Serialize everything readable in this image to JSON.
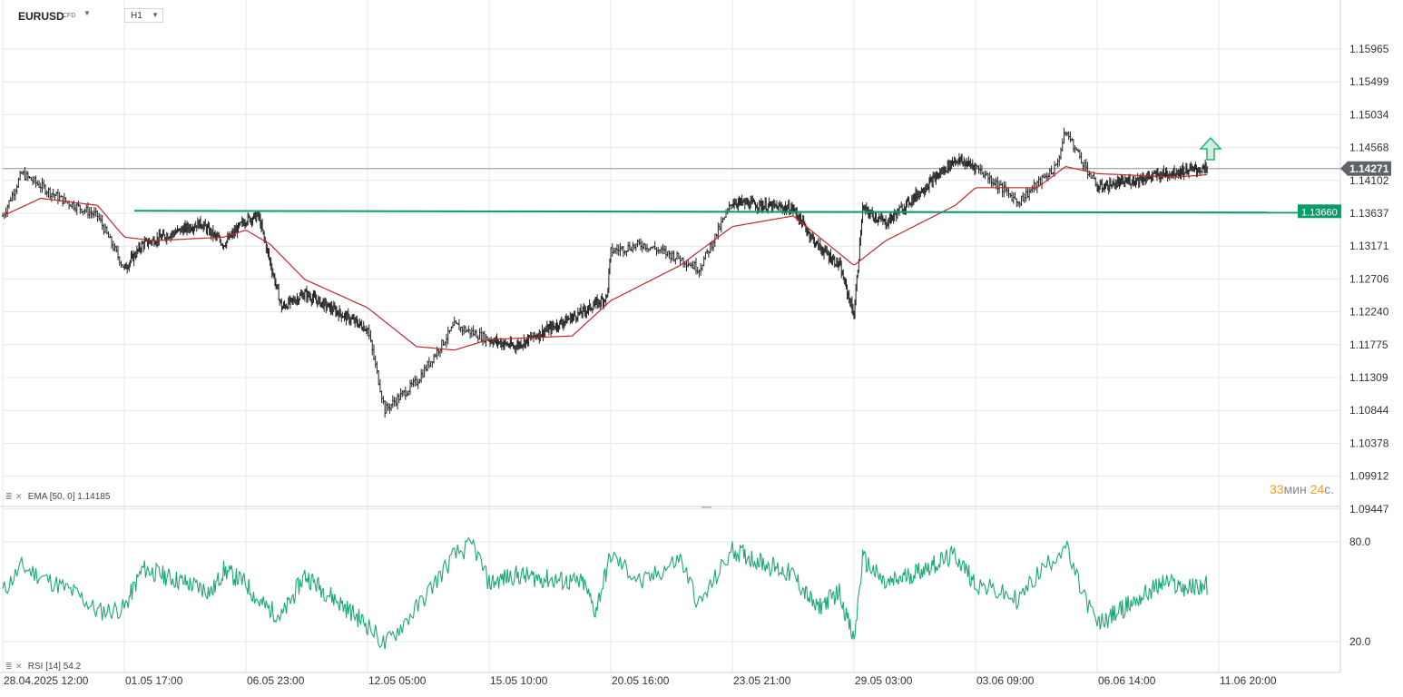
{
  "toolbar": {
    "symbol": "EURUSD",
    "symbol_type": "CFD",
    "timeframe": "H1"
  },
  "price_axis": {
    "ticks": [
      "1.15965",
      "1.15499",
      "1.15034",
      "1.14568",
      "1.14102",
      "1.13637",
      "1.13171",
      "1.12706",
      "1.12240",
      "1.11775",
      "1.11309",
      "1.10844",
      "1.10378",
      "1.09912",
      "1.09447"
    ],
    "current_price": "1.14271",
    "level_label": "1.13660"
  },
  "rsi_axis": {
    "ticks": [
      "80.0",
      "20.0"
    ]
  },
  "time_axis": {
    "labels": [
      "28.04.2025  12:00",
      "01.05  17:00",
      "06.05  23:00",
      "12.05  05:00",
      "15.05  10:00",
      "20.05  16:00",
      "23.05  21:00",
      "29.05  03:00",
      "03.06  09:00",
      "06.06  14:00",
      "11.06  20:00"
    ]
  },
  "indicators": {
    "ema_label": "EMA",
    "ema_params": "[50, 0]",
    "ema_value": "1.14185",
    "rsi_label": "RSI",
    "rsi_params": "[14]",
    "rsi_value": "54.2"
  },
  "countdown": {
    "minutes": "33",
    "min_unit": "мин",
    "seconds": "24",
    "sec_unit": "с."
  },
  "colors": {
    "candle": "#222222",
    "ema": "#c0282d",
    "level": "#0a9b6a",
    "rsi": "#1aaa72",
    "grid": "#e4e7ea",
    "current_price_tag": "#5f6368",
    "arrow": "#26b37d"
  },
  "chart_data": [
    {
      "type": "candlestick",
      "title": "EURUSD H1",
      "x_labels": [
        "28.04.2025 12:00",
        "01.05 17:00",
        "06.05 23:00",
        "12.05 05:00",
        "15.05 10:00",
        "20.05 16:00",
        "23.05 21:00",
        "29.05 03:00",
        "03.06 09:00",
        "06.06 14:00",
        "11.06 20:00"
      ],
      "ylim": [
        1.0922,
        1.162
      ],
      "close_path": [
        [
          "28.04 12:00",
          1.136
        ],
        [
          "29.04 00:00",
          1.142
        ],
        [
          "30.04 00:00",
          1.1385
        ],
        [
          "01.05 00:00",
          1.136
        ],
        [
          "01.05 17:00",
          1.1285
        ],
        [
          "02.05 12:00",
          1.132
        ],
        [
          "05.05 00:00",
          1.135
        ],
        [
          "06.05 00:00",
          1.132
        ],
        [
          "06.05 23:00",
          1.1355
        ],
        [
          "07.05 12:00",
          1.136
        ],
        [
          "08.05 12:00",
          1.123
        ],
        [
          "09.05 12:00",
          1.125
        ],
        [
          "12.05 05:00",
          1.12
        ],
        [
          "12.05 16:00",
          1.1085
        ],
        [
          "13.05 12:00",
          1.1125
        ],
        [
          "14.05 12:00",
          1.1205
        ],
        [
          "15.05 10:00",
          1.1185
        ],
        [
          "16.05 12:00",
          1.1175
        ],
        [
          "19.05 12:00",
          1.1225
        ],
        [
          "20.05 12:00",
          1.1245
        ],
        [
          "20.05 16:00",
          1.131
        ],
        [
          "21.05 12:00",
          1.132
        ],
        [
          "22.05 12:00",
          1.13
        ],
        [
          "23.05 00:00",
          1.1285
        ],
        [
          "23.05 21:00",
          1.138
        ],
        [
          "26.05 12:00",
          1.137
        ],
        [
          "27.05 12:00",
          1.132
        ],
        [
          "28.05 12:00",
          1.129
        ],
        [
          "29.05 03:00",
          1.122
        ],
        [
          "29.05 12:00",
          1.137
        ],
        [
          "30.05 12:00",
          1.135
        ],
        [
          "02.06 12:00",
          1.144
        ],
        [
          "03.06 09:00",
          1.143
        ],
        [
          "04.06 12:00",
          1.138
        ],
        [
          "05.06 12:00",
          1.143
        ],
        [
          "05.06 18:00",
          1.148
        ],
        [
          "06.06 14:00",
          1.14
        ],
        [
          "09.06 12:00",
          1.142
        ],
        [
          "10.06 12:00",
          1.1425
        ],
        [
          "11.06 08:00",
          1.1427
        ]
      ]
    },
    {
      "type": "line",
      "name": "EMA [50, 0]",
      "last_value": 1.14185,
      "points": [
        [
          "28.04 12:00",
          1.136
        ],
        [
          "29.04 12:00",
          1.1385
        ],
        [
          "01.05 00:00",
          1.1375
        ],
        [
          "01.05 17:00",
          1.133
        ],
        [
          "03.05 00:00",
          1.1325
        ],
        [
          "06.05 00:00",
          1.133
        ],
        [
          "06.05 23:00",
          1.134
        ],
        [
          "08.05 00:00",
          1.132
        ],
        [
          "09.05 12:00",
          1.127
        ],
        [
          "12.05 05:00",
          1.123
        ],
        [
          "13.05 12:00",
          1.1175
        ],
        [
          "14.05 12:00",
          1.117
        ],
        [
          "15.05 10:00",
          1.1185
        ],
        [
          "19.05 00:00",
          1.119
        ],
        [
          "20.05 16:00",
          1.124
        ],
        [
          "22.05 12:00",
          1.129
        ],
        [
          "23.05 21:00",
          1.1345
        ],
        [
          "26.05 12:00",
          1.136
        ],
        [
          "28.05 00:00",
          1.132
        ],
        [
          "29.05 03:00",
          1.129
        ],
        [
          "30.05 12:00",
          1.1325
        ],
        [
          "02.06 12:00",
          1.1375
        ],
        [
          "03.06 09:00",
          1.14
        ],
        [
          "05.06 00:00",
          1.14
        ],
        [
          "05.06 18:00",
          1.143
        ],
        [
          "06.06 14:00",
          1.142
        ],
        [
          "10.06 00:00",
          1.1415
        ],
        [
          "11.06 08:00",
          1.14185
        ]
      ]
    },
    {
      "type": "hline",
      "name": "level",
      "value": 1.1366
    },
    {
      "type": "line",
      "name": "RSI [14]",
      "ylim": [
        10,
        90
      ],
      "last_value": 54.2,
      "points": [
        [
          "28.04 12:00",
          50
        ],
        [
          "29.04 00:00",
          65
        ],
        [
          "30.04 12:00",
          48
        ],
        [
          "01.05 00:00",
          38
        ],
        [
          "01.05 17:00",
          40
        ],
        [
          "02.05 12:00",
          64
        ],
        [
          "05.05 12:00",
          50
        ],
        [
          "06.05 00:00",
          63
        ],
        [
          "06.05 23:00",
          55
        ],
        [
          "07.05 12:00",
          44
        ],
        [
          "08.05 12:00",
          35
        ],
        [
          "09.05 12:00",
          60
        ],
        [
          "12.05 05:00",
          30
        ],
        [
          "12.05 16:00",
          18
        ],
        [
          "13.05 12:00",
          40
        ],
        [
          "14.05 12:00",
          72
        ],
        [
          "15.05 00:00",
          78
        ],
        [
          "15.05 10:00",
          55
        ],
        [
          "16.05 12:00",
          60
        ],
        [
          "19.05 12:00",
          55
        ],
        [
          "20.05 00:00",
          38
        ],
        [
          "20.05 16:00",
          72
        ],
        [
          "21.05 12:00",
          55
        ],
        [
          "22.05 12:00",
          70
        ],
        [
          "23.05 00:00",
          42
        ],
        [
          "23.05 21:00",
          75
        ],
        [
          "26.05 12:00",
          60
        ],
        [
          "27.05 12:00",
          40
        ],
        [
          "28.05 12:00",
          50
        ],
        [
          "29.05 03:00",
          20
        ],
        [
          "29.05 12:00",
          70
        ],
        [
          "30.05 12:00",
          54
        ],
        [
          "02.06 12:00",
          72
        ],
        [
          "03.06 09:00",
          55
        ],
        [
          "04.06 12:00",
          45
        ],
        [
          "05.06 00:00",
          60
        ],
        [
          "05.06 18:00",
          78
        ],
        [
          "06.06 00:00",
          60
        ],
        [
          "06.06 14:00",
          30
        ],
        [
          "09.06 12:00",
          56
        ],
        [
          "10.06 12:00",
          52
        ],
        [
          "11.06 08:00",
          54.2
        ]
      ]
    }
  ]
}
